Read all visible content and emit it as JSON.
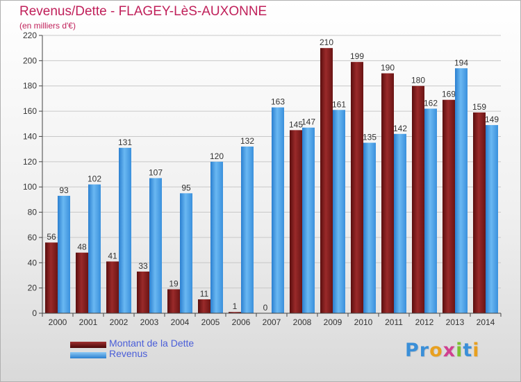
{
  "chart_data": {
    "type": "bar",
    "title": "Revenus/Dette - FLAGEY-LèS-AUXONNE",
    "subtitle": "(en milliers d'€)",
    "categories": [
      "2000",
      "2001",
      "2002",
      "2003",
      "2004",
      "2005",
      "2006",
      "2007",
      "2008",
      "2009",
      "2010",
      "2011",
      "2012",
      "2013",
      "2014"
    ],
    "series": [
      {
        "name": "Montant de la Dette",
        "color": "#7a1a1a",
        "values": [
          56,
          48,
          41,
          33,
          19,
          11,
          1,
          0,
          145,
          210,
          199,
          190,
          180,
          169,
          159
        ]
      },
      {
        "name": "Revenus",
        "color": "#4da3e8",
        "values": [
          93,
          102,
          131,
          107,
          95,
          120,
          132,
          163,
          147,
          161,
          135,
          142,
          162,
          194,
          149
        ]
      }
    ],
    "y_ticks": [
      0,
      20,
      40,
      60,
      80,
      100,
      120,
      140,
      160,
      180,
      200,
      220
    ],
    "ylim": [
      0,
      220
    ],
    "grid": true,
    "legend_position": "bottom-left"
  },
  "legend": {
    "dette_label": "Montant de la Dette",
    "revenus_label": "Revenus",
    "dette_color": "#6a1010",
    "revenus_color": "#4da3e8"
  },
  "logo": {
    "text": "Proxiti",
    "letters": [
      "P",
      "r",
      "o",
      "x",
      "i",
      "t",
      "i"
    ],
    "colors": [
      "#3a8fd8",
      "#3a8fd8",
      "#e8a020",
      "#d04090",
      "#7cc030",
      "#3a8fd8",
      "#e8a020"
    ]
  }
}
